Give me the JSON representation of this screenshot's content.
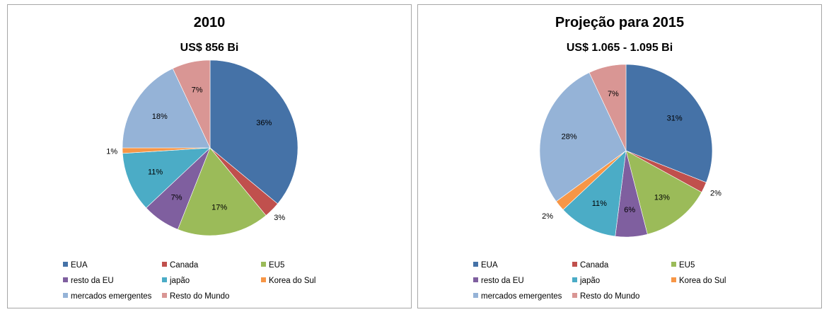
{
  "colors": [
    "#4572A7",
    "#C0504D",
    "#9BBB59",
    "#7F5F9F",
    "#4BACC6",
    "#F79646",
    "#95B3D7",
    "#D99694"
  ],
  "legend": [
    "EUA",
    "Canada",
    "EU5",
    "resto da EU",
    "japão",
    "Korea do Sul",
    "mercados emergentes",
    "Resto do Mundo"
  ],
  "chart_data": [
    {
      "type": "pie",
      "title": "2010",
      "subtitle": "US$ 856 Bi",
      "labels": [
        "EUA",
        "Canada",
        "EU5",
        "resto da EU",
        "japão",
        "Korea do Sul",
        "mercados emergentes",
        "Resto do Mundo"
      ],
      "values": [
        36,
        3,
        17,
        7,
        11,
        1,
        18,
        7
      ],
      "data_labels": [
        "36%",
        "3%",
        "17%",
        "7%",
        "11%",
        "1%",
        "18%",
        "7%"
      ],
      "legend_position": "bottom"
    },
    {
      "type": "pie",
      "title": "Projeção para 2015",
      "subtitle": "US$ 1.065 - 1.095 Bi",
      "labels": [
        "EUA",
        "Canada",
        "EU5",
        "resto da EU",
        "japão",
        "Korea do Sul",
        "mercados emergentes",
        "Resto do Mundo"
      ],
      "values": [
        31,
        2,
        13,
        6,
        11,
        2,
        28,
        7
      ],
      "data_labels": [
        "31%",
        "2%",
        "13%",
        "6%",
        "11%",
        "2%",
        "28%",
        "7%"
      ],
      "legend_position": "bottom"
    }
  ]
}
